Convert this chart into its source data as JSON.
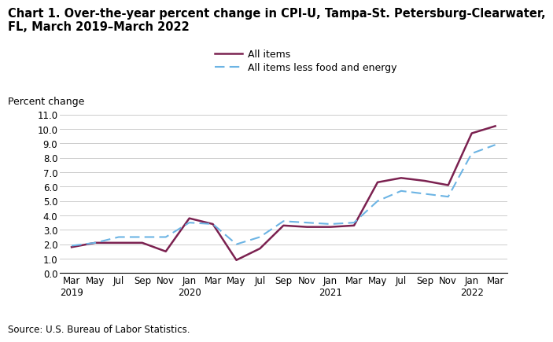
{
  "title_line1": "Chart 1. Over-the-year percent change in CPI-U, Tampa-St. Petersburg-Clearwater,",
  "title_line2": "FL, March 2019–March 2022",
  "ylabel": "Percent change",
  "source": "Source: U.S. Bureau of Labor Statistics.",
  "xlabels": [
    "Mar\n2019",
    "May",
    "Jul",
    "Sep",
    "Nov",
    "Jan\n2020",
    "Mar",
    "May",
    "Jul",
    "Sep",
    "Nov",
    "Jan\n2021",
    "Mar",
    "May",
    "Jul",
    "Sep",
    "Nov",
    "Jan\n2022",
    "Mar"
  ],
  "all_items": [
    1.8,
    2.1,
    2.1,
    2.1,
    1.5,
    3.8,
    3.4,
    0.9,
    1.7,
    3.3,
    3.2,
    3.2,
    3.3,
    6.3,
    6.6,
    6.4,
    6.1,
    9.7,
    10.2
  ],
  "all_items_less": [
    1.9,
    2.1,
    2.5,
    2.5,
    2.5,
    3.5,
    3.4,
    2.0,
    2.5,
    3.6,
    3.5,
    3.4,
    3.5,
    5.0,
    5.7,
    5.5,
    5.3,
    8.3,
    8.9
  ],
  "all_items_color": "#7B2150",
  "all_items_less_color": "#6CB4E4",
  "ylim": [
    0.0,
    11.0
  ],
  "yticks": [
    0.0,
    1.0,
    2.0,
    3.0,
    4.0,
    5.0,
    6.0,
    7.0,
    8.0,
    9.0,
    10.0,
    11.0
  ],
  "title_fontsize": 10.5,
  "axis_label_fontsize": 9,
  "tick_fontsize": 8.5,
  "legend_fontsize": 9,
  "source_fontsize": 8.5,
  "grid_color": "#CCCCCC",
  "spine_color": "#999999"
}
